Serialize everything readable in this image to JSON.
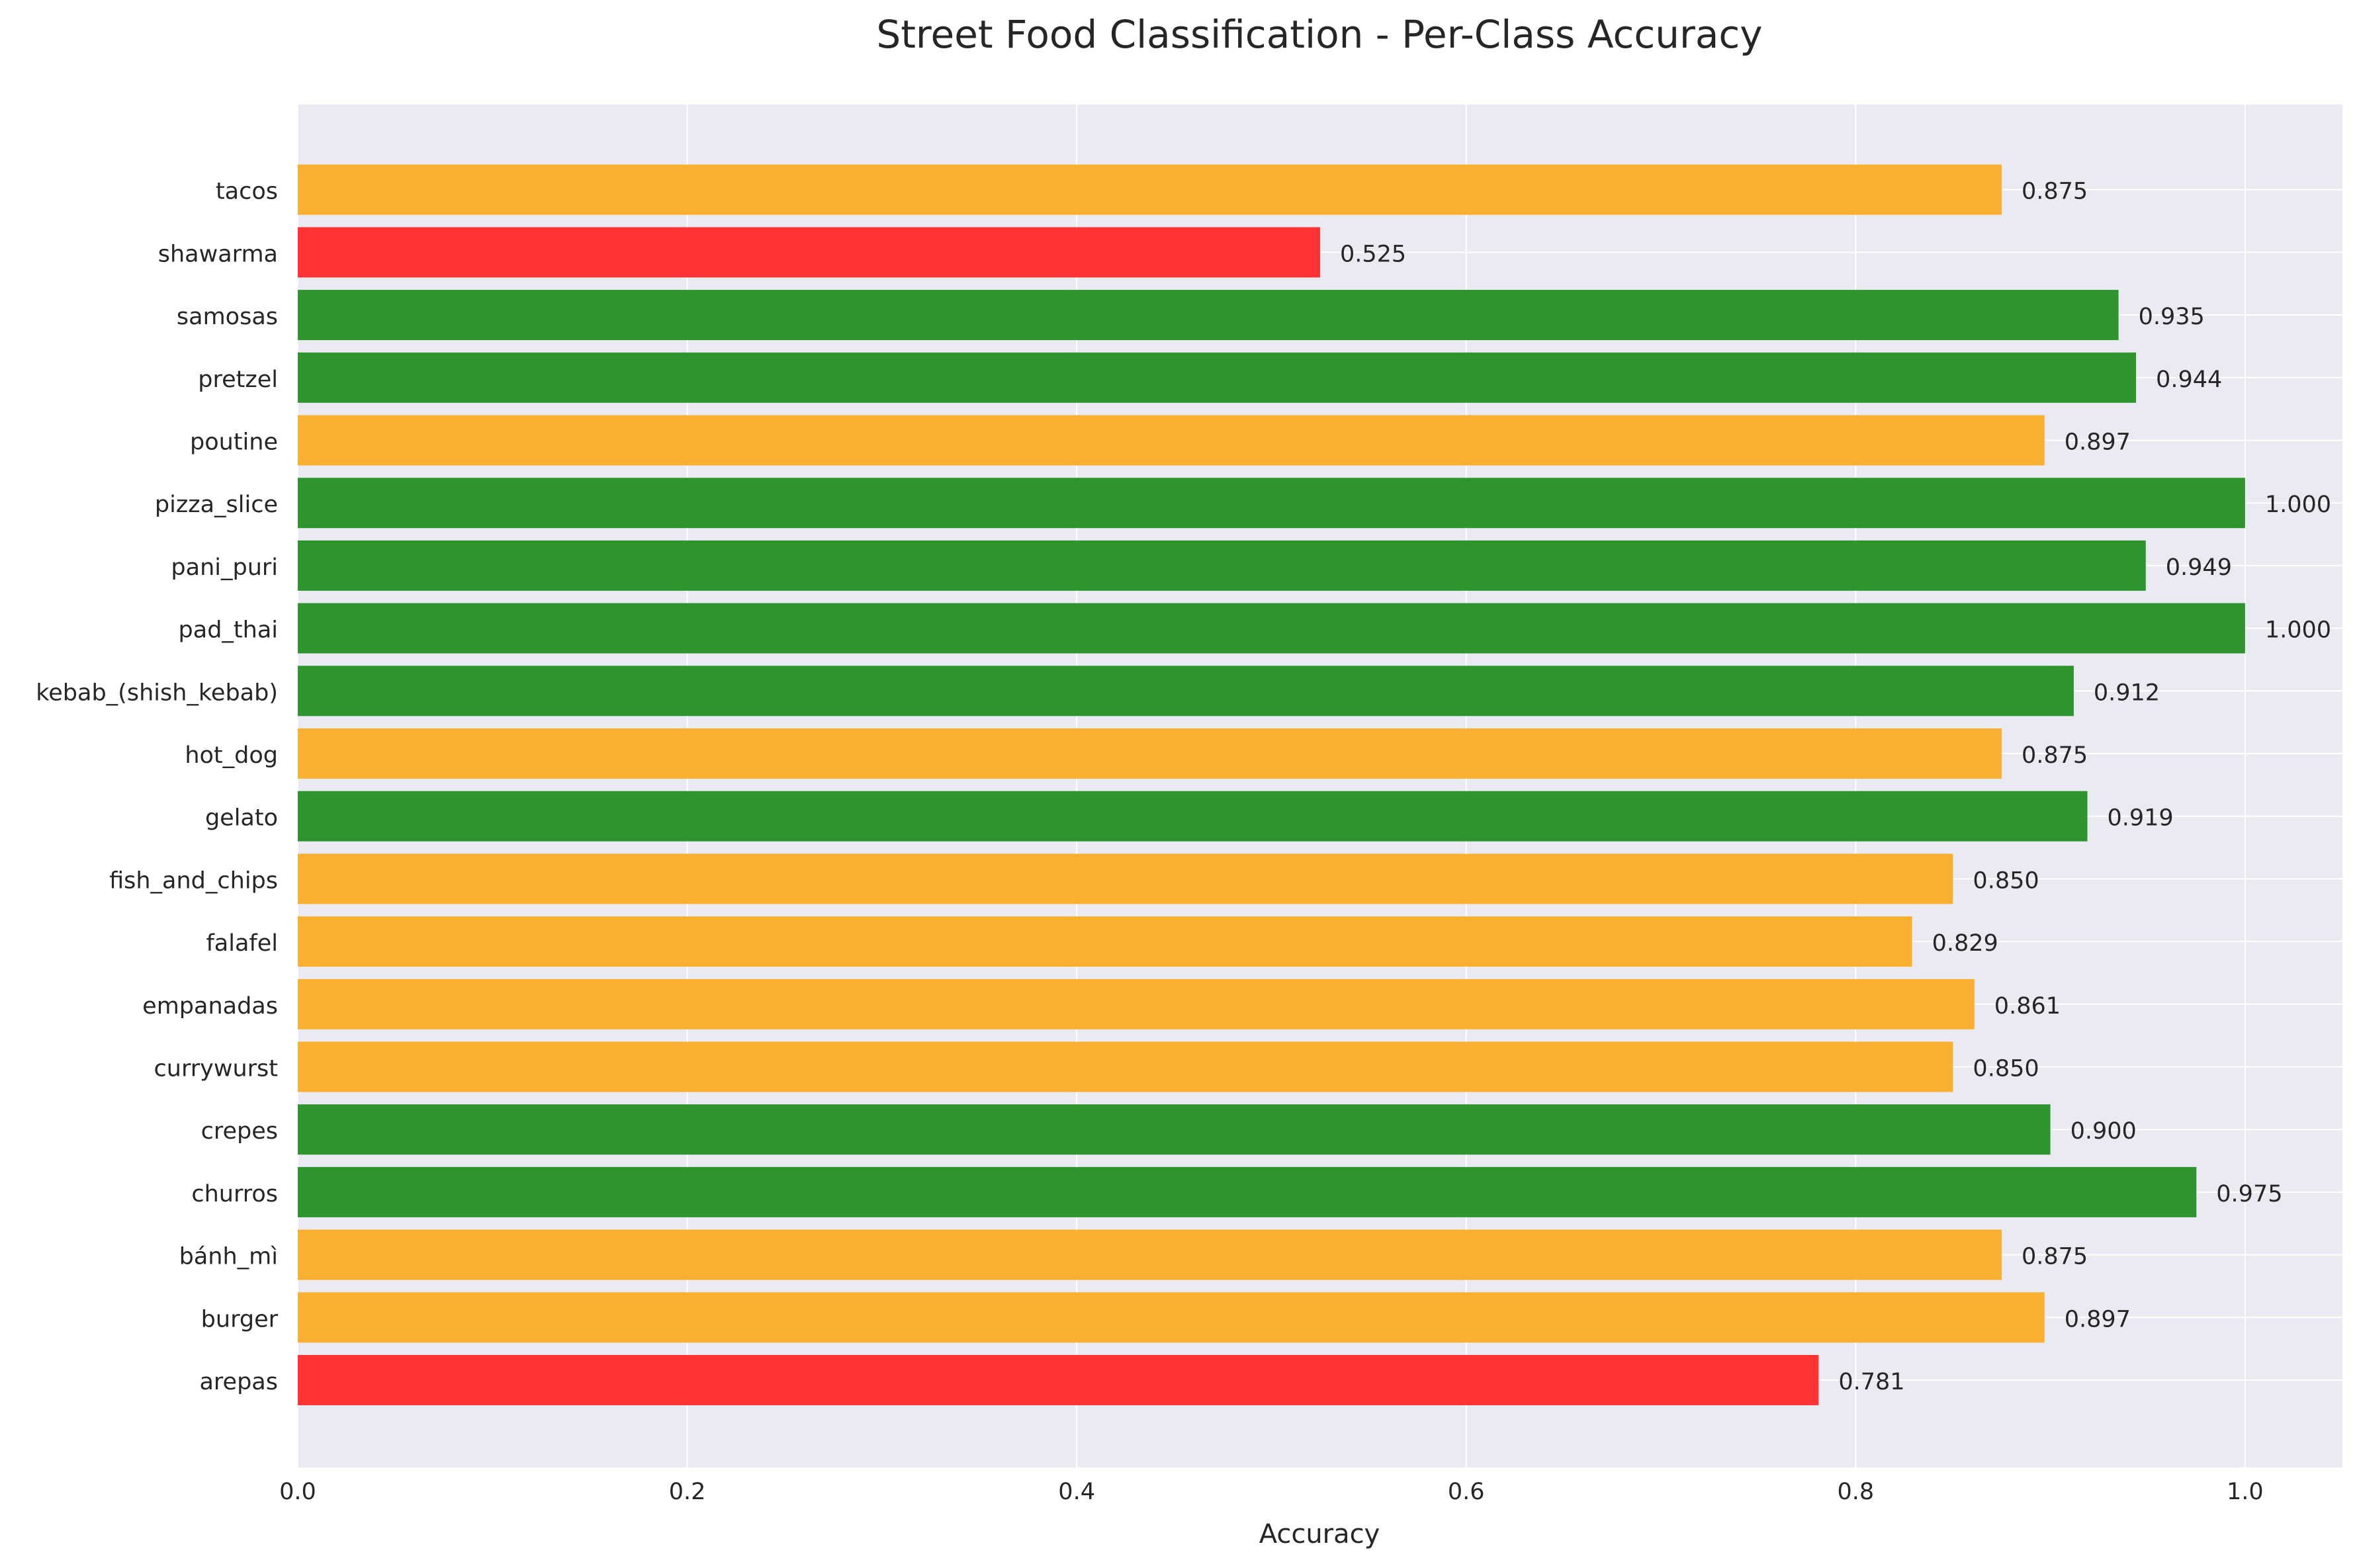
{
  "chart_data": {
    "type": "bar",
    "orientation": "horizontal",
    "title": "Street Food Classification - Per-Class Accuracy",
    "xlabel": "Accuracy",
    "ylabel": "",
    "xlim": [
      0,
      1.05
    ],
    "xticks": [
      "0.0",
      "0.2",
      "0.4",
      "0.6",
      "0.8",
      "1.0"
    ],
    "grid": true,
    "background": "#eaeaf2",
    "colors": {
      "high": "#2e952e",
      "mid": "#f9b031",
      "low": "#ff3333"
    },
    "categories": [
      "arepas",
      "burger",
      "bánh_mì",
      "churros",
      "crepes",
      "currywurst",
      "empanadas",
      "falafel",
      "fish_and_chips",
      "gelato",
      "hot_dog",
      "kebab_(shish_kebab)",
      "pad_thai",
      "pani_puri",
      "pizza_slice",
      "poutine",
      "pretzel",
      "samosas",
      "shawarma",
      "tacos"
    ],
    "values": [
      0.781,
      0.897,
      0.875,
      0.975,
      0.9,
      0.85,
      0.861,
      0.829,
      0.85,
      0.919,
      0.875,
      0.912,
      1.0,
      0.949,
      1.0,
      0.897,
      0.944,
      0.935,
      0.525,
      0.875
    ],
    "value_labels": [
      "0.781",
      "0.897",
      "0.875",
      "0.975",
      "0.900",
      "0.850",
      "0.861",
      "0.829",
      "0.850",
      "0.919",
      "0.875",
      "0.912",
      "1.000",
      "0.949",
      "1.000",
      "0.897",
      "0.944",
      "0.935",
      "0.525",
      "0.875"
    ],
    "bar_levels": [
      "low",
      "mid",
      "mid",
      "high",
      "high",
      "mid",
      "mid",
      "mid",
      "mid",
      "high",
      "mid",
      "high",
      "high",
      "high",
      "high",
      "mid",
      "high",
      "high",
      "low",
      "mid"
    ]
  }
}
